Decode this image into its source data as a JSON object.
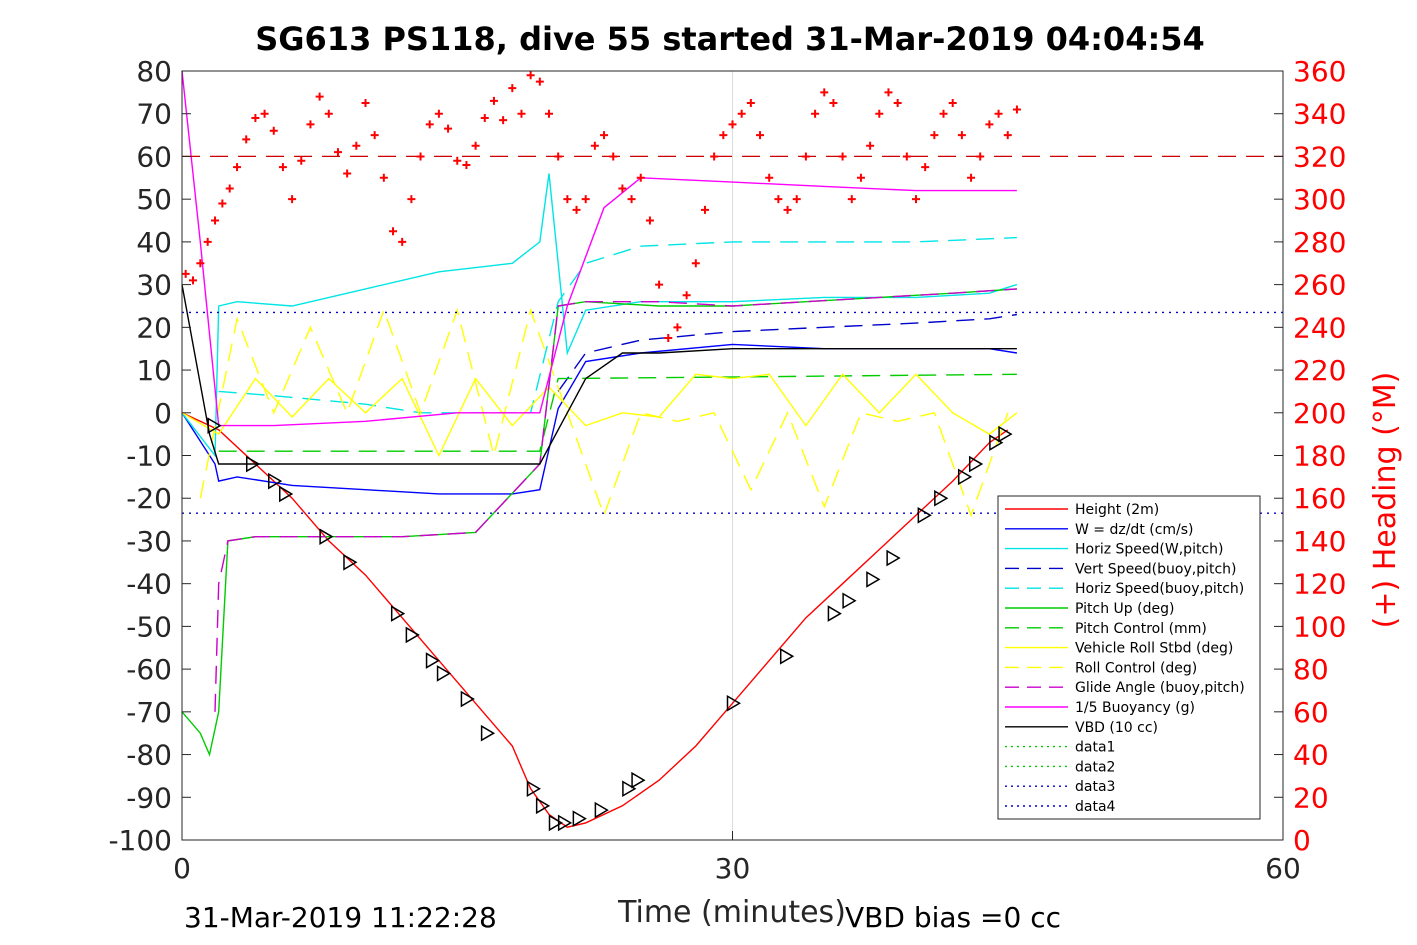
{
  "chart_data": {
    "type": "line",
    "title": "SG613 PS118, dive 55 started 31-Mar-2019 04:04:54",
    "xlabel": "Time (minutes)",
    "ylabel_right": "(+) Heading (°M)",
    "xlim": [
      0,
      60
    ],
    "ylim": [
      -100,
      80
    ],
    "ylim_right": [
      0,
      360
    ],
    "x_ticks": [
      "0",
      "30",
      "60"
    ],
    "y_ticks": [
      "80",
      "70",
      "60",
      "50",
      "40",
      "30",
      "20",
      "10",
      "0",
      "-10",
      "-20",
      "-30",
      "-40",
      "-50",
      "-60",
      "-70",
      "-80",
      "-90",
      "-100"
    ],
    "y_right_ticks": [
      "360",
      "340",
      "320",
      "300",
      "280",
      "260",
      "240",
      "220",
      "200",
      "180",
      "160",
      "140",
      "120",
      "100",
      "80",
      "60",
      "40",
      "20",
      "0"
    ],
    "grid": "x-only",
    "legend_position": "bottom-right",
    "footer_left": "31-Mar-2019 11:22:28",
    "footer_right": "VBD bias =0 cc",
    "series": [
      {
        "name": "Height (2m)",
        "color": "#ff0000",
        "style": "solid",
        "x": [
          0,
          2,
          4,
          6,
          8,
          10,
          12,
          14,
          16,
          18,
          19,
          20,
          21,
          22,
          24,
          26,
          28,
          30,
          32,
          34,
          36,
          38,
          40,
          42,
          44,
          45
        ],
        "y": [
          0,
          -4,
          -12,
          -20,
          -30,
          -38,
          -48,
          -58,
          -68,
          -78,
          -88,
          -94,
          -97,
          -96,
          -92,
          -86,
          -78,
          -68,
          -58,
          -48,
          -40,
          -32,
          -24,
          -16,
          -7,
          -4
        ]
      },
      {
        "name": "W = dz/dt (cm/s)",
        "color": "#0000ff",
        "style": "solid",
        "x": [
          0,
          1.8,
          2,
          3,
          6,
          10,
          14,
          18,
          19.5,
          20.5,
          22,
          25,
          30,
          35,
          40,
          44,
          45.5
        ],
        "y": [
          0,
          -12,
          -16,
          -15,
          -17,
          -18,
          -19,
          -19,
          -18,
          1,
          12,
          14,
          16,
          15,
          15,
          15,
          14
        ]
      },
      {
        "name": "Horiz Speed(W,pitch)",
        "color": "#00e5e5",
        "style": "solid",
        "x": [
          0,
          1.8,
          2,
          3,
          6,
          10,
          14,
          18,
          19.5,
          20,
          20.5,
          21,
          22,
          25,
          30,
          35,
          40,
          44,
          45.5
        ],
        "y": [
          0,
          -10,
          25,
          26,
          25,
          29,
          33,
          35,
          40,
          56,
          35,
          14,
          24,
          26,
          26,
          27,
          27,
          28,
          30
        ]
      },
      {
        "name": "Vert Speed(buoy,pitch)",
        "color": "#0000cc",
        "style": "dashed",
        "x": [
          20.5,
          22,
          25,
          30,
          35,
          40,
          44,
          45.5
        ],
        "y": [
          5,
          14,
          17,
          19,
          20,
          21,
          22,
          23
        ]
      },
      {
        "name": "Horiz Speed(buoy,pitch)",
        "color": "#00e5e5",
        "style": "dashed",
        "x": [
          2,
          5,
          10,
          13,
          16,
          19,
          20.5,
          22,
          25,
          30,
          35,
          40,
          45.5
        ],
        "y": [
          5,
          4,
          2,
          0,
          0,
          0,
          26,
          35,
          39,
          40,
          40,
          40,
          41
        ]
      },
      {
        "name": "Pitch Up (deg)",
        "color": "#00cc00",
        "style": "solid",
        "x": [
          0,
          1,
          1.5,
          2,
          2.5,
          4,
          8,
          12,
          16,
          19.5,
          20.5,
          22,
          26,
          30,
          34,
          38,
          42,
          45.5
        ],
        "y": [
          -70,
          -75,
          -80,
          -70,
          -30,
          -29,
          -29,
          -29,
          -28,
          -12,
          25,
          26,
          25,
          25,
          26,
          27,
          28,
          29
        ]
      },
      {
        "name": "Pitch Control (mm)",
        "color": "#00cc00",
        "style": "dashed",
        "x": [
          2,
          19.5,
          20.5,
          45.5
        ],
        "y": [
          -9,
          -9,
          8,
          9
        ]
      },
      {
        "name": "Vehicle Roll Stbd (deg)",
        "color": "#ffff00",
        "style": "solid",
        "x": [
          0,
          2,
          4,
          6,
          8,
          10,
          12,
          14,
          16,
          18,
          20,
          22,
          24,
          26,
          28,
          30,
          32,
          34,
          36,
          38,
          40,
          42,
          44,
          45.5
        ],
        "y": [
          0,
          -5,
          8,
          -1,
          8,
          0,
          8,
          -10,
          8,
          -3,
          6,
          -3,
          0,
          -1,
          9,
          8,
          9,
          -3,
          9,
          0,
          9,
          0,
          -5,
          0
        ]
      },
      {
        "name": "Roll Control (deg)",
        "color": "#ffff00",
        "style": "dashed",
        "x": [
          1,
          3,
          5,
          7,
          9,
          11,
          13,
          15,
          17,
          19,
          21,
          23,
          25,
          27,
          29,
          31,
          33,
          35,
          37,
          39,
          41,
          43,
          45
        ],
        "y": [
          -20,
          22,
          0,
          20,
          0,
          24,
          0,
          24,
          -10,
          24,
          0,
          -24,
          0,
          -2,
          0,
          -18,
          0,
          -22,
          0,
          -2,
          0,
          -24,
          0
        ]
      },
      {
        "name": "Glide Angle (buoy,pitch)",
        "color": "#cc00cc",
        "style": "dashed",
        "x": [
          1.8,
          2,
          2.5,
          4,
          8,
          12,
          16,
          19.5,
          20.5,
          22,
          26,
          30,
          34,
          38,
          42,
          45.5
        ],
        "y": [
          -70,
          -40,
          -30,
          -29,
          -29,
          -29,
          -28,
          -12,
          25,
          26,
          26,
          25,
          26,
          27,
          28,
          29
        ]
      },
      {
        "name": "1/5 Buoyancy (g)",
        "color": "#ff00ff",
        "style": "solid",
        "x": [
          0,
          1,
          2,
          5,
          10,
          15,
          19.5,
          21,
          23,
          25,
          30,
          35,
          40,
          45.5
        ],
        "y": [
          80,
          40,
          -3,
          -3,
          -2,
          0,
          0,
          25,
          48,
          55,
          54,
          53,
          52,
          52
        ]
      },
      {
        "name": "VBD (10 cc)",
        "color": "#000000",
        "style": "solid",
        "x": [
          0,
          1.5,
          2,
          4,
          10,
          15,
          19.5,
          21,
          22,
          24,
          26,
          30,
          35,
          40,
          45.5
        ],
        "y": [
          30,
          -5,
          -12,
          -12,
          -12,
          -12,
          -12,
          0,
          8,
          14,
          14,
          15,
          15,
          15,
          15
        ]
      },
      {
        "name": "data1",
        "color": "#00cc00",
        "style": "dotted",
        "x": [],
        "y": []
      },
      {
        "name": "data2",
        "color": "#00cc00",
        "style": "dotted",
        "x": [],
        "y": []
      },
      {
        "name": "data3",
        "color": "#0000cc",
        "style": "dotted",
        "x": [
          0,
          60
        ],
        "y": [
          23.5,
          23.5
        ]
      },
      {
        "name": "data4",
        "color": "#0000cc",
        "style": "dotted",
        "x": [
          0,
          60
        ],
        "y": [
          -23.5,
          -23.5
        ]
      }
    ],
    "unlisted_lines": [
      {
        "color": "#cc0000",
        "style": "dashed",
        "axis": "right",
        "x": [
          0,
          60
        ],
        "y": [
          320,
          320
        ]
      }
    ],
    "heading_series": {
      "axis": "right",
      "color": "#ff0000",
      "marker": "+",
      "x": [
        0.2,
        0.6,
        1.0,
        1.4,
        1.8,
        2.2,
        2.6,
        3.0,
        3.5,
        4.0,
        4.5,
        5.0,
        5.5,
        6.0,
        6.5,
        7.0,
        7.5,
        8.0,
        8.5,
        9.0,
        9.5,
        10.0,
        10.5,
        11.0,
        11.5,
        12.0,
        12.5,
        13.0,
        13.5,
        14.0,
        14.5,
        15.0,
        15.5,
        16.0,
        16.5,
        17.0,
        17.5,
        18.0,
        18.5,
        19.0,
        19.5,
        20.0,
        20.5,
        21.0,
        21.5,
        22.0,
        22.5,
        23.0,
        23.5,
        24.0,
        24.5,
        25.0,
        25.5,
        26.0,
        26.5,
        27.0,
        27.5,
        28.0,
        28.5,
        29.0,
        29.5,
        30.0,
        30.5,
        31.0,
        31.5,
        32.0,
        32.5,
        33.0,
        33.5,
        34.0,
        34.5,
        35.0,
        35.5,
        36.0,
        36.5,
        37.0,
        37.5,
        38.0,
        38.5,
        39.0,
        39.5,
        40.0,
        40.5,
        41.0,
        41.5,
        42.0,
        42.5,
        43.0,
        43.5,
        44.0,
        44.5,
        45.0,
        45.5
      ],
      "y": [
        265,
        262,
        270,
        280,
        290,
        298,
        305,
        315,
        328,
        338,
        340,
        332,
        315,
        300,
        318,
        335,
        348,
        340,
        322,
        312,
        325,
        345,
        330,
        310,
        285,
        280,
        300,
        320,
        335,
        340,
        333,
        318,
        316,
        325,
        338,
        346,
        337,
        352,
        340,
        358,
        355,
        340,
        320,
        300,
        295,
        300,
        325,
        330,
        320,
        305,
        300,
        310,
        290,
        260,
        235,
        240,
        255,
        270,
        295,
        320,
        330,
        335,
        340,
        345,
        330,
        310,
        300,
        295,
        300,
        320,
        340,
        350,
        345,
        320,
        300,
        310,
        325,
        340,
        350,
        345,
        320,
        300,
        315,
        330,
        340,
        345,
        330,
        310,
        320,
        335,
        340,
        330,
        342
      ]
    },
    "triangle_markers": {
      "x": [
        1.7,
        3.8,
        5.0,
        5.6,
        7.8,
        9.1,
        11.7,
        12.5,
        13.6,
        14.2,
        15.5,
        16.6,
        19.1,
        19.6,
        20.3,
        20.8,
        21.6,
        22.8,
        24.3,
        24.8,
        30.0,
        32.9,
        35.5,
        36.3,
        37.6,
        38.7,
        40.4,
        41.3,
        42.6,
        43.2,
        44.3,
        44.8
      ],
      "y": [
        -3,
        -12,
        -16,
        -19,
        -29,
        -35,
        -47,
        -52,
        -58,
        -61,
        -67,
        -75,
        -88,
        -92,
        -96,
        -96,
        -95,
        -93,
        -88,
        -86,
        -68,
        -57,
        -47,
        -44,
        -39,
        -34,
        -24,
        -20,
        -15,
        -12,
        -7,
        -5
      ]
    }
  }
}
